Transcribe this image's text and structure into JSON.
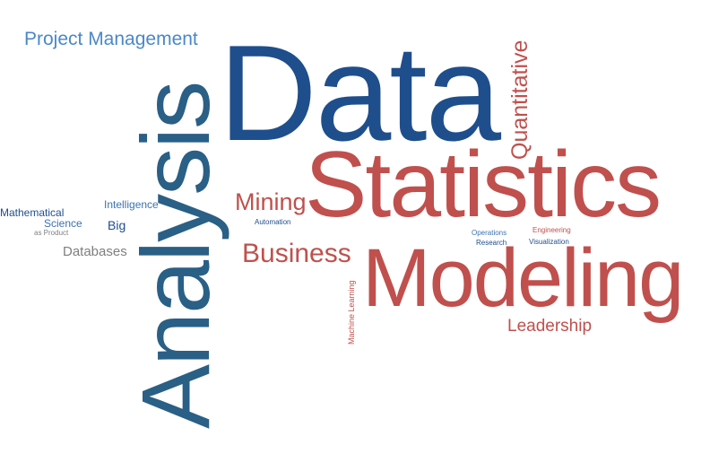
{
  "colors": {
    "dark_blue": "#1f4e8c",
    "mid_blue": "#3a73b0",
    "light_blue": "#4a88c8",
    "teal_blue": "#2a5f86",
    "red": "#c0504d",
    "gray": "#7f7f7f"
  },
  "words": {
    "project_management": "Project Management",
    "data": "Data",
    "analysis": "Analysis",
    "quantitative": "Quantitative",
    "statistics": "Statistics",
    "mining": "Mining",
    "modeling": "Modeling",
    "business": "Business",
    "intelligence": "Intelligence",
    "mathematical": "Mathematical",
    "science": "Science",
    "big": "Big",
    "as_product": "as Product",
    "databases": "Databases",
    "automation": "Automation",
    "operations": "Operations",
    "research": "Research",
    "engineering": "Engineering",
    "visualization": "Visualization",
    "machine_learning": "Machine Learning",
    "leadership": "Leadership"
  }
}
